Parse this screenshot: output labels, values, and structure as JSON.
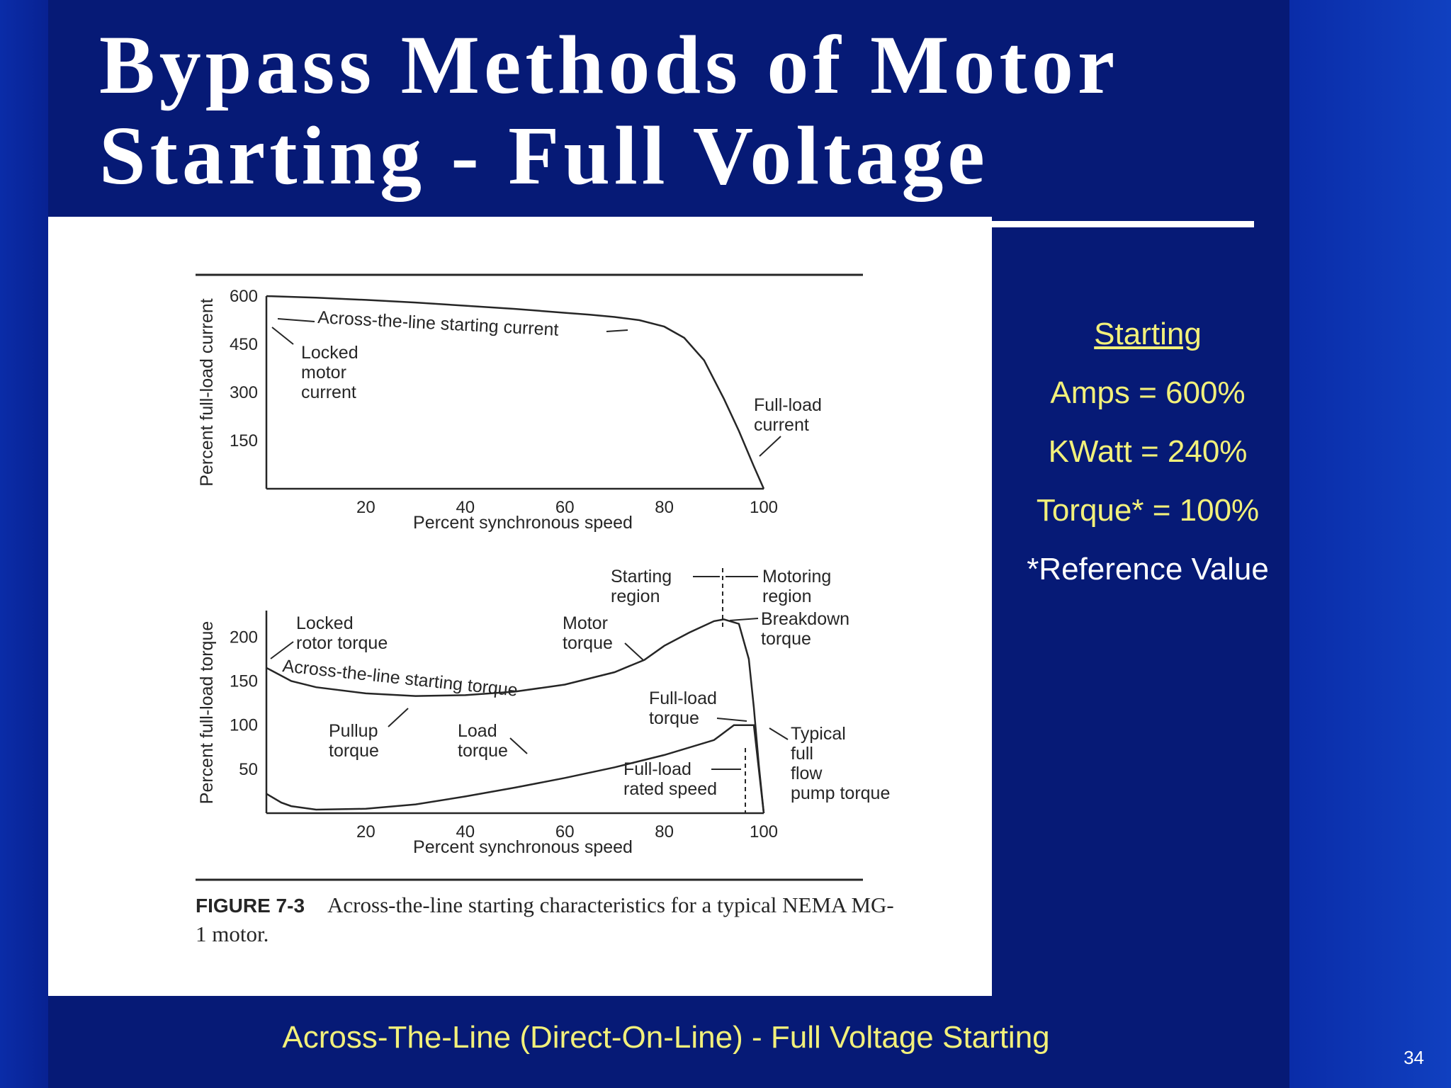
{
  "slide": {
    "title_line1": "Bypass Methods of Motor",
    "title_line2": "Starting - Full Voltage",
    "footer": "Across-The-Line (Direct-On-Line)  -  Full Voltage Starting",
    "page_number": "34"
  },
  "side_panel": {
    "heading": "Starting",
    "rows": [
      "Amps = 600%",
      "KWatt = 240%",
      "Torque* = 100%"
    ],
    "note": "*Reference Value"
  },
  "figure": {
    "caption_label": "FIGURE 7-3",
    "caption_text": "Across-the-line starting characteristics for a typical NEMA MG-1 motor."
  },
  "chart_data": [
    {
      "type": "line",
      "title": "",
      "xlabel": "Percent synchronous speed",
      "ylabel": "Percent full-load current",
      "xlim": [
        0,
        100
      ],
      "ylim": [
        0,
        600
      ],
      "x_ticks": [
        "20",
        "40",
        "60",
        "80",
        "100"
      ],
      "y_ticks": [
        "600",
        "450",
        "300",
        "150"
      ],
      "grid": false,
      "series": [
        {
          "name": "Across-the-line starting current",
          "x": [
            0,
            10,
            20,
            30,
            40,
            50,
            60,
            65,
            70,
            75,
            80,
            84,
            88,
            92,
            95,
            98,
            100
          ],
          "y": [
            600,
            595,
            588,
            580,
            570,
            560,
            548,
            542,
            535,
            525,
            505,
            470,
            400,
            280,
            180,
            70,
            0
          ]
        }
      ],
      "annotations": [
        {
          "text": "Across-the-line starting current",
          "x": 10,
          "y": 580
        },
        {
          "text": "Locked motor current",
          "x": 0,
          "y": 600
        },
        {
          "text": "Full-load current",
          "x": 100,
          "y": 0
        }
      ]
    },
    {
      "type": "line",
      "title": "",
      "xlabel": "Percent synchronous speed",
      "ylabel": "Percent full-load torque",
      "xlim": [
        0,
        100
      ],
      "ylim": [
        0,
        230
      ],
      "x_ticks": [
        "20",
        "40",
        "60",
        "80",
        "100"
      ],
      "y_ticks": [
        "200",
        "150",
        "100",
        "50"
      ],
      "grid": false,
      "series": [
        {
          "name": "Across-the-line starting torque",
          "x": [
            0,
            5,
            10,
            20,
            30,
            40,
            50,
            60,
            70,
            76,
            80,
            85,
            90,
            92,
            95,
            97,
            98,
            99,
            100
          ],
          "y": [
            165,
            150,
            143,
            136,
            133,
            134,
            138,
            146,
            160,
            174,
            190,
            205,
            218,
            220,
            215,
            175,
            120,
            55,
            0
          ]
        },
        {
          "name": "Typical full flow pump torque",
          "x": [
            0,
            3,
            5,
            10,
            20,
            30,
            40,
            50,
            60,
            70,
            80,
            90,
            94,
            98,
            100
          ],
          "y": [
            22,
            12,
            8,
            4,
            5,
            10,
            19,
            29,
            40,
            52,
            66,
            83,
            100,
            100,
            0
          ]
        }
      ],
      "annotations": [
        {
          "text": "Starting region",
          "x": 86,
          "y": 265
        },
        {
          "text": "Motoring region",
          "x": 100,
          "y": 265
        },
        {
          "text": "Locked rotor torque",
          "x": 0,
          "y": 165
        },
        {
          "text": "Motor torque",
          "x": 70,
          "y": 160
        },
        {
          "text": "Breakdown torque",
          "x": 92,
          "y": 220
        },
        {
          "text": "Full-load torque",
          "x": 97,
          "y": 100
        },
        {
          "text": "Pullup torque",
          "x": 35,
          "y": 133
        },
        {
          "text": "Load torque",
          "x": 65,
          "y": 45
        },
        {
          "text": "Full-load rated speed",
          "x": 96,
          "y": 40
        },
        {
          "text": "Typical full flow pump torque",
          "x": 100,
          "y": 100
        }
      ]
    }
  ]
}
